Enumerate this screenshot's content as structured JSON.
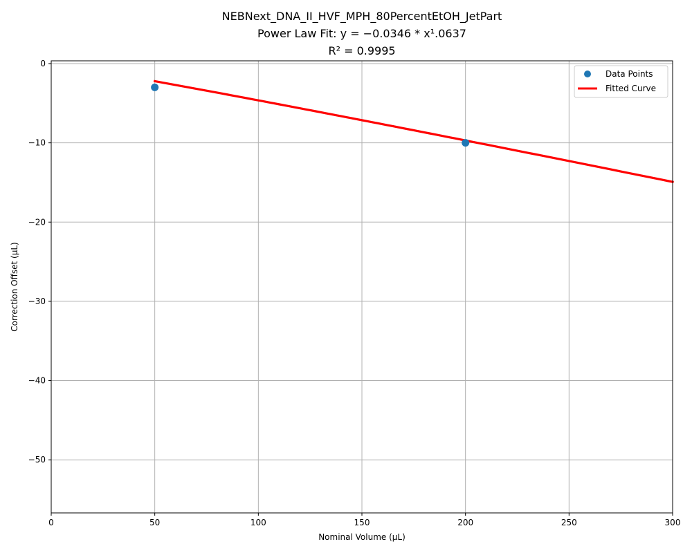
{
  "chart_data": {
    "type": "scatter",
    "title_lines": [
      "NEBNext_DNA_II_HVF_MPH_80PercentEtOH_JetPart",
      "Power Law Fit: y = −0.0346 * x¹.0637",
      "R² = 0.9995"
    ],
    "xlabel": "Nominal Volume (µL)",
    "ylabel": "Correction Offset (µL)",
    "xlim": [
      0,
      300
    ],
    "ylim": [
      -56.7,
      0.35
    ],
    "x_ticks": [
      0,
      50,
      100,
      150,
      200,
      250,
      300
    ],
    "y_ticks": [
      0,
      -10,
      -20,
      -30,
      -40,
      -50
    ],
    "x_tick_labels": [
      "0",
      "50",
      "100",
      "150",
      "200",
      "250",
      "300"
    ],
    "y_tick_labels": [
      "0",
      "−10",
      "−20",
      "−30",
      "−40",
      "−50"
    ],
    "grid": true,
    "legend_position": "top-right",
    "series": [
      {
        "name": "Data Points",
        "kind": "scatter",
        "color": "#1f77b4",
        "points": [
          {
            "x": 50,
            "y": -3.0
          },
          {
            "x": 200,
            "y": -10.0
          }
        ]
      },
      {
        "name": "Fitted Curve",
        "kind": "line",
        "color": "#ff0000",
        "equation": {
          "a": -0.0346,
          "b": 1.0637
        },
        "x_range": [
          50,
          300
        ]
      }
    ]
  }
}
